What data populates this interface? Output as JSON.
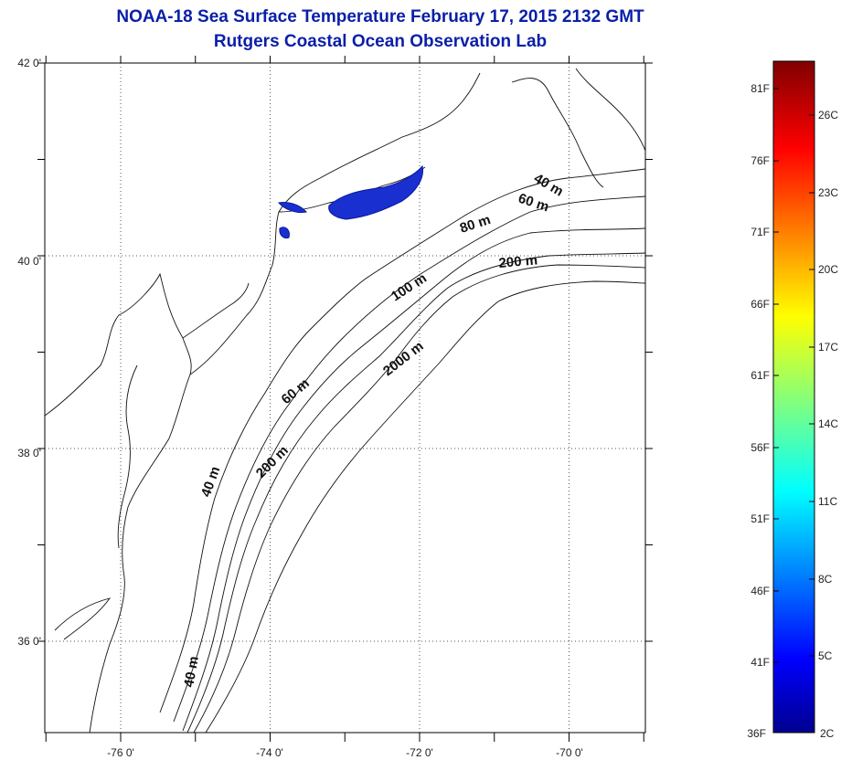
{
  "title": {
    "line1": "NOAA-18 Sea Surface Temperature February 17, 2015 2132 GMT",
    "line2": "Rutgers Coastal Ocean Observation Lab"
  },
  "map": {
    "lat_ticks": [
      {
        "value": 42,
        "label": "42 0'"
      },
      {
        "value": 40,
        "label": "40 0'"
      },
      {
        "value": 38,
        "label": "38 0'"
      },
      {
        "value": 36,
        "label": "36 0'"
      }
    ],
    "lon_ticks": [
      {
        "value": -76,
        "label": "-76 0'"
      },
      {
        "value": -74,
        "label": "-74 0'"
      },
      {
        "value": -72,
        "label": "-72 0'"
      },
      {
        "value": -70,
        "label": "-70 0'"
      }
    ],
    "contour_labels": [
      {
        "id": "c40a",
        "text": "40 m"
      },
      {
        "id": "c60a",
        "text": "60 m"
      },
      {
        "id": "c80a",
        "text": "80 m"
      },
      {
        "id": "c200a",
        "text": "200 m"
      },
      {
        "id": "c100a",
        "text": "100 m"
      },
      {
        "id": "c2000a",
        "text": "2000 m"
      },
      {
        "id": "c60b",
        "text": "60 m"
      },
      {
        "id": "c200b",
        "text": "200 m"
      },
      {
        "id": "c40b",
        "text": "40 m"
      },
      {
        "id": "c40c",
        "text": "40 m"
      }
    ]
  },
  "colorbar": {
    "fahrenheit": [
      "81F",
      "76F",
      "71F",
      "66F",
      "61F",
      "56F",
      "51F",
      "46F",
      "41F",
      "36F"
    ],
    "celsius": [
      "26C",
      "23C",
      "20C",
      "17C",
      "14C",
      "11C",
      "8C",
      "5C",
      "2C"
    ]
  },
  "colors": {
    "title": "#0a1fa8",
    "sst_patch": "#1a2fd0"
  }
}
